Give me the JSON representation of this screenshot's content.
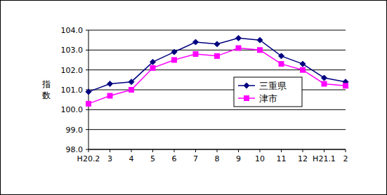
{
  "chart_data": {
    "type": "line",
    "y_label": "指数",
    "categories": [
      "H20.2",
      "3",
      "4",
      "5",
      "6",
      "7",
      "8",
      "9",
      "10",
      "11",
      "12",
      "H21.1",
      "2"
    ],
    "series": [
      {
        "name": "三重県",
        "color": "#000080",
        "marker": "diamond",
        "values": [
          100.9,
          101.3,
          101.4,
          102.4,
          102.9,
          103.4,
          103.3,
          103.6,
          103.5,
          102.7,
          102.3,
          101.6,
          101.4
        ]
      },
      {
        "name": "津市",
        "color": "#ff00ff",
        "marker": "square",
        "values": [
          100.3,
          100.7,
          101.0,
          102.1,
          102.5,
          102.8,
          102.7,
          103.1,
          103.0,
          102.3,
          102.0,
          101.3,
          101.2
        ]
      }
    ],
    "ylim": [
      98,
      104
    ],
    "yticks": [
      {
        "value": 98,
        "label": "98.0"
      },
      {
        "value": 99,
        "label": "99.0"
      },
      {
        "value": 100,
        "label": "100.0"
      },
      {
        "value": 101,
        "label": "101.0"
      },
      {
        "value": 102,
        "label": "102.0"
      },
      {
        "value": 103,
        "label": "103.0"
      },
      {
        "value": 104,
        "label": "104.0"
      }
    ],
    "grid": true,
    "legend": "right"
  }
}
